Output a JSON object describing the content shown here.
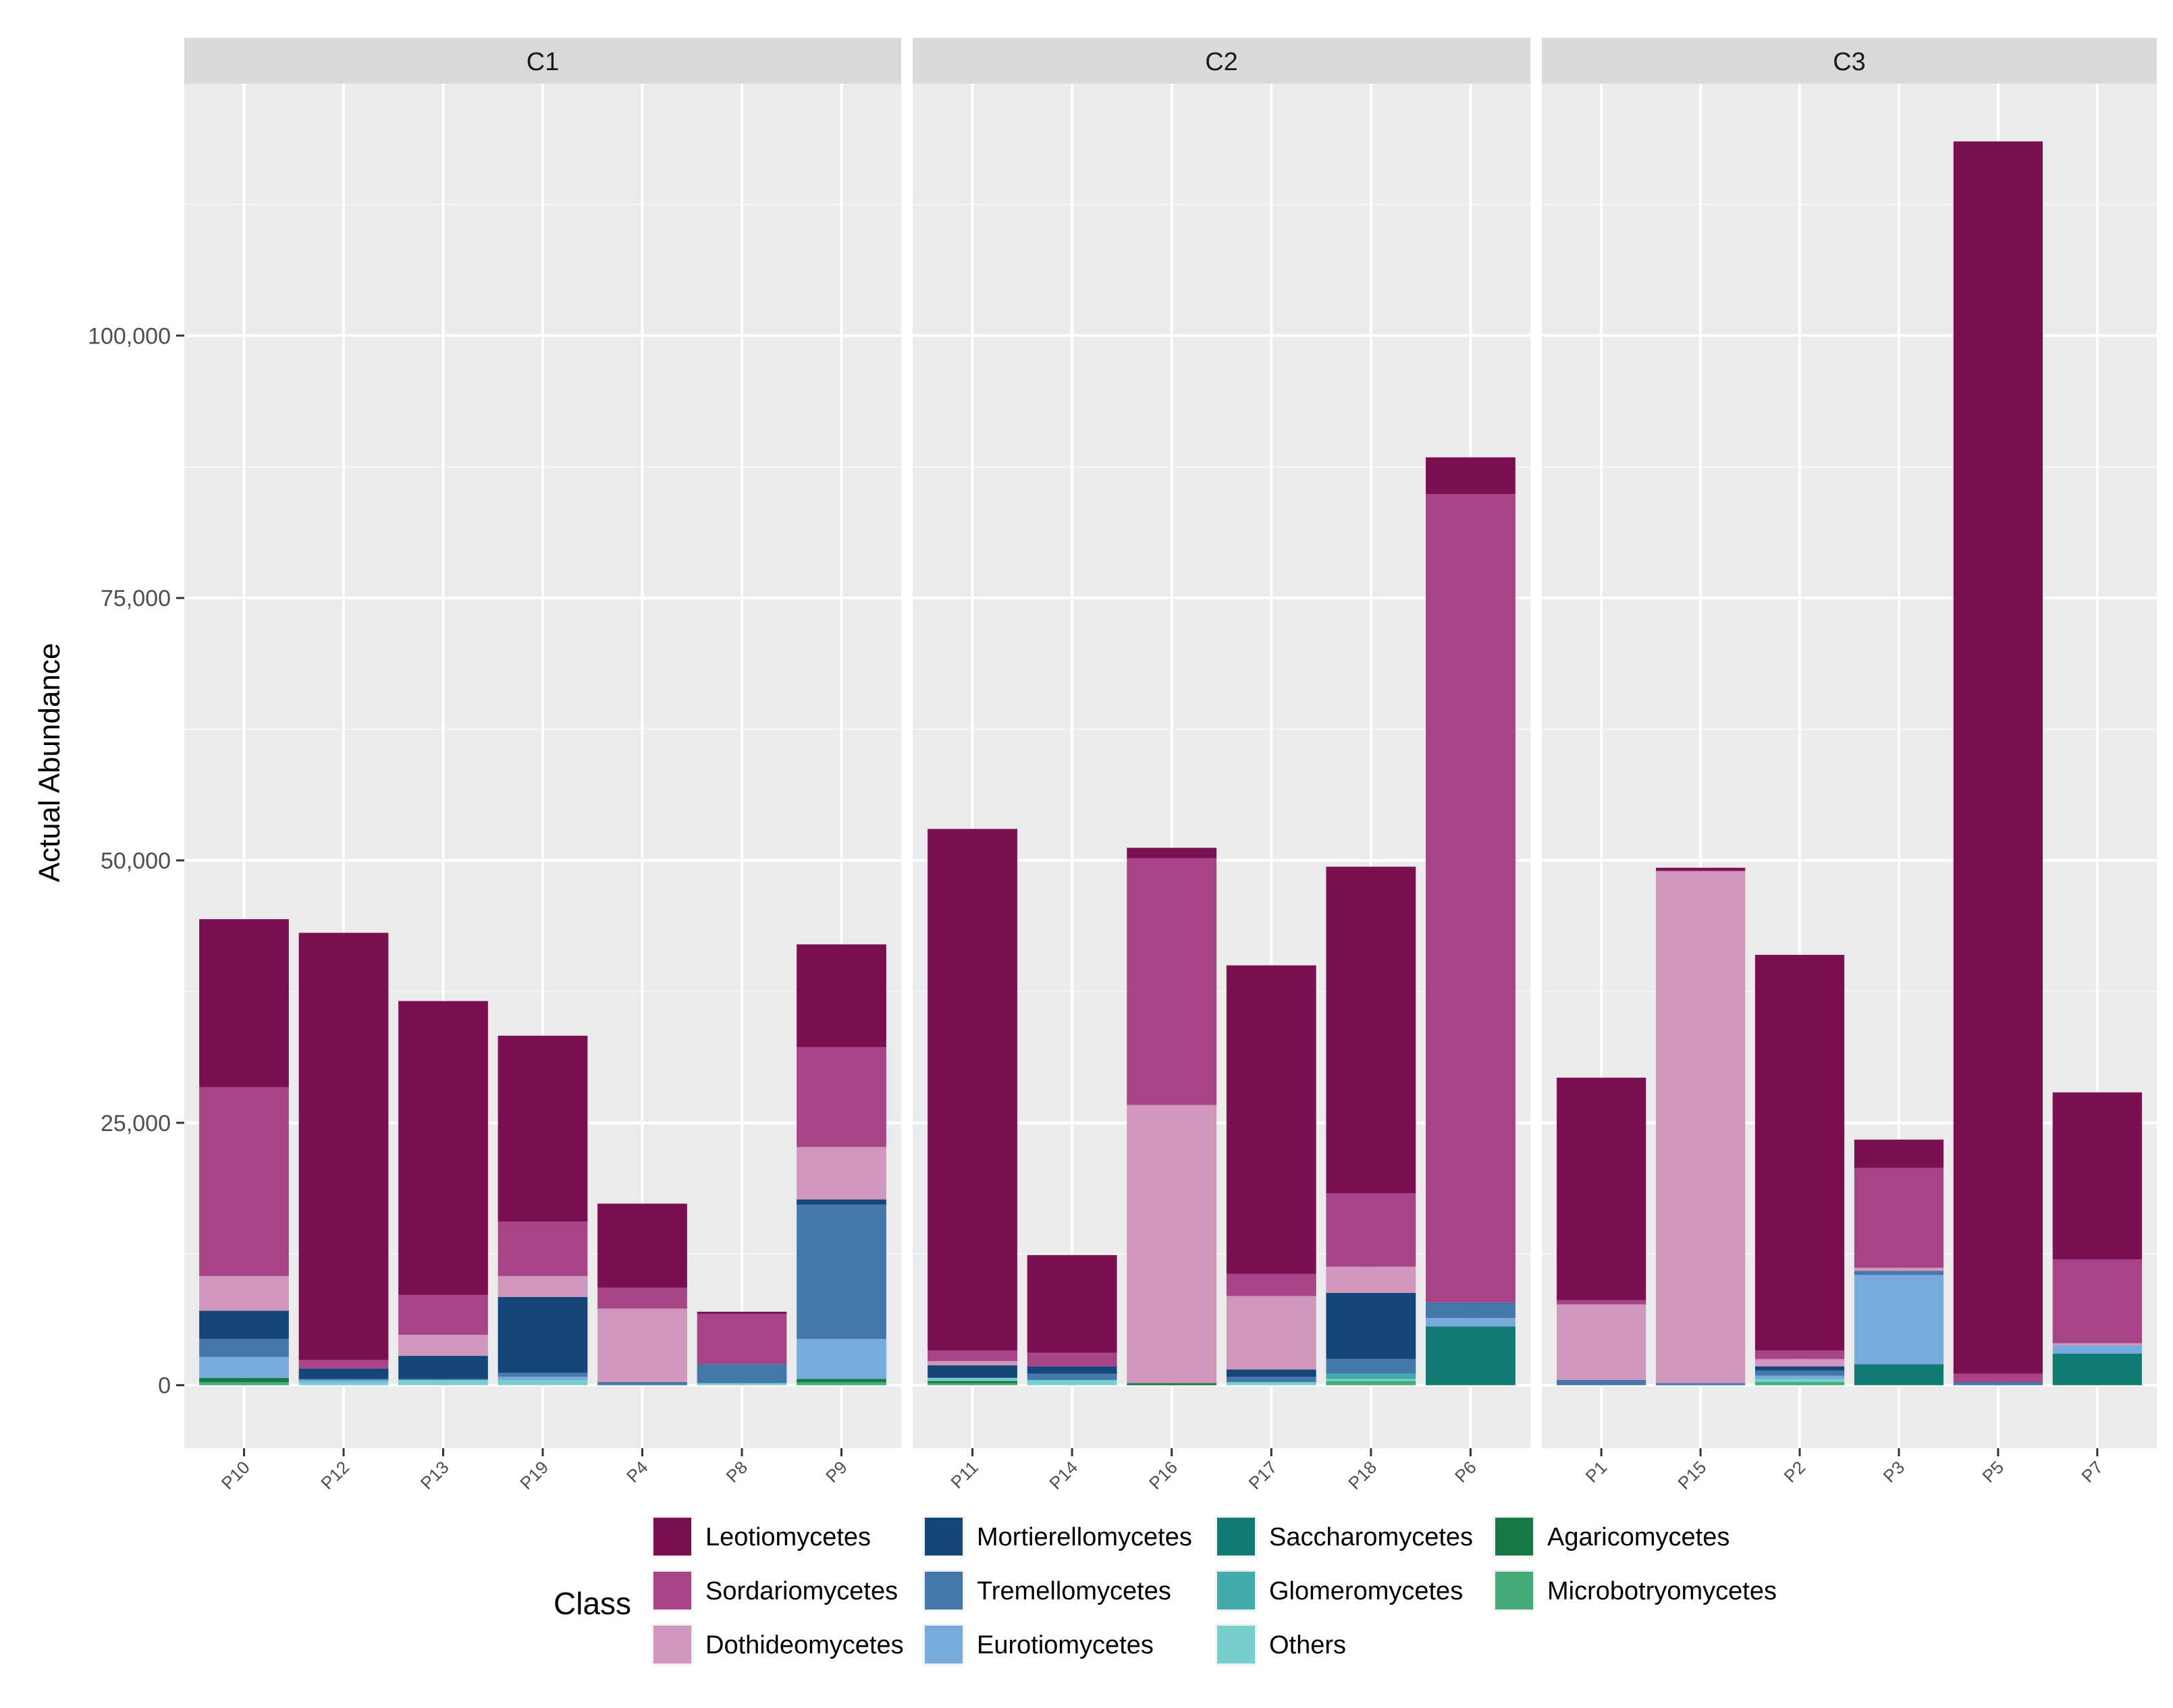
{
  "chart_data": {
    "type": "bar",
    "stacked": true,
    "ylabel": "Actual Abundance",
    "xlabel": "",
    "ylim": [
      -6000,
      124000
    ],
    "yticks": [
      0,
      25000,
      50000,
      75000,
      100000
    ],
    "ytick_labels": [
      "0",
      "25,000",
      "50,000",
      "75,000",
      "100,000"
    ],
    "legend_title": "Class",
    "legend_position": "bottom",
    "classes": [
      {
        "name": "Leotiomycetes",
        "color": "#7a1052"
      },
      {
        "name": "Sordariomycetes",
        "color": "#a64486"
      },
      {
        "name": "Dothideomycetes",
        "color": "#cf97bb"
      },
      {
        "name": "Mortierellomycetes",
        "color": "#14467a"
      },
      {
        "name": "Tremellomycetes",
        "color": "#4478ab"
      },
      {
        "name": "Eurotiomycetes",
        "color": "#78abdd"
      },
      {
        "name": "Saccharomycetes",
        "color": "#137a73"
      },
      {
        "name": "Glomeromycetes",
        "color": "#43abab"
      },
      {
        "name": "Others",
        "color": "#78cdcd"
      },
      {
        "name": "Agaricomycetes",
        "color": "#167a44"
      },
      {
        "name": "Microbotryomycetes",
        "color": "#45ab78"
      }
    ],
    "facets": [
      {
        "name": "C1",
        "samples": [
          {
            "id": "P10",
            "values": [
              16000,
              18000,
              3300,
              2700,
              1700,
              2000,
              0,
              0,
              0,
              400,
              300
            ]
          },
          {
            "id": "P12",
            "values": [
              40700,
              800,
              0,
              1000,
              100,
              200,
              0,
              0,
              300,
              0,
              0
            ]
          },
          {
            "id": "P13",
            "values": [
              28000,
              3800,
              2000,
              2200,
              100,
              0,
              0,
              0,
              500,
              0,
              0
            ]
          },
          {
            "id": "P19",
            "values": [
              17700,
              5200,
              2000,
              7200,
              400,
              300,
              0,
              0,
              500,
              0,
              0
            ]
          },
          {
            "id": "P4",
            "values": [
              8000,
              2000,
              7000,
              0,
              300,
              0,
              0,
              0,
              0,
              0,
              0
            ]
          },
          {
            "id": "P8",
            "values": [
              200,
              4800,
              0,
              0,
              1800,
              0,
              0,
              0,
              200,
              0,
              0
            ]
          },
          {
            "id": "P9",
            "values": [
              9800,
              9500,
              5000,
              500,
              12800,
              3800,
              0,
              0,
              0,
              300,
              300
            ]
          }
        ]
      },
      {
        "name": "C2",
        "samples": [
          {
            "id": "P11",
            "values": [
              49700,
              1000,
              400,
              1200,
              0,
              0,
              0,
              0,
              300,
              200,
              200
            ]
          },
          {
            "id": "P14",
            "values": [
              9300,
              1300,
              0,
              700,
              600,
              0,
              0,
              0,
              500,
              0,
              0
            ]
          },
          {
            "id": "P16",
            "values": [
              1000,
              23500,
              26500,
              0,
              0,
              0,
              0,
              0,
              0,
              200,
              0
            ]
          },
          {
            "id": "P17",
            "values": [
              29400,
              2100,
              7000,
              700,
              500,
              0,
              0,
              0,
              300,
              0,
              0
            ]
          },
          {
            "id": "P18",
            "values": [
              31100,
              7000,
              2500,
              6300,
              1400,
              0,
              0,
              500,
              200,
              0,
              400
            ]
          },
          {
            "id": "P6",
            "values": [
              3500,
              77000,
              0,
              0,
              1500,
              800,
              5600,
              0,
              0,
              0,
              0
            ]
          }
        ]
      },
      {
        "name": "C3",
        "samples": [
          {
            "id": "P1",
            "values": [
              21200,
              400,
              7200,
              0,
              500,
              0,
              0,
              0,
              0,
              0,
              0
            ]
          },
          {
            "id": "P15",
            "values": [
              300,
              0,
              48800,
              0,
              200,
              0,
              0,
              0,
              0,
              0,
              0
            ]
          },
          {
            "id": "P2",
            "values": [
              37700,
              800,
              700,
              400,
              500,
              300,
              0,
              0,
              300,
              0,
              300
            ]
          },
          {
            "id": "P3",
            "values": [
              2700,
              9500,
              300,
              0,
              400,
              8500,
              2000,
              0,
              0,
              0,
              0
            ]
          },
          {
            "id": "P5",
            "values": [
              117400,
              800,
              0,
              0,
              300,
              0,
              0,
              0,
              0,
              0,
              0
            ]
          },
          {
            "id": "P7",
            "values": [
              15900,
              8000,
              200,
              0,
              0,
              800,
              3000,
              0,
              0,
              0,
              0
            ]
          }
        ]
      }
    ]
  }
}
